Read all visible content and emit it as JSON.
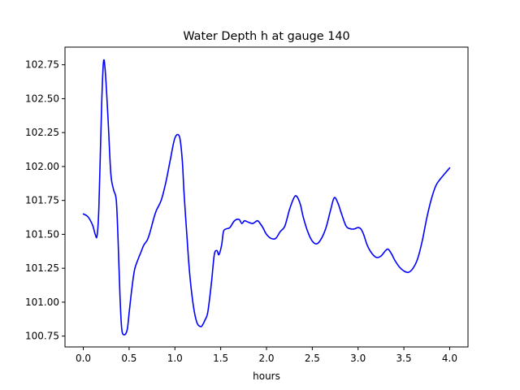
{
  "chart_data": {
    "type": "line",
    "title": "Water Depth h at gauge 140",
    "xlabel": "hours",
    "ylabel": "",
    "xlim": [
      -0.2,
      4.2
    ],
    "ylim": [
      100.67,
      102.88
    ],
    "x_ticks": [
      0.0,
      0.5,
      1.0,
      1.5,
      2.0,
      2.5,
      3.0,
      3.5,
      4.0
    ],
    "x_tick_labels": [
      "0.0",
      "0.5",
      "1.0",
      "1.5",
      "2.0",
      "2.5",
      "3.0",
      "3.5",
      "4.0"
    ],
    "y_ticks": [
      100.75,
      101.0,
      101.25,
      101.5,
      101.75,
      102.0,
      102.25,
      102.5,
      102.75
    ],
    "y_tick_labels": [
      "100.75",
      "101.00",
      "101.25",
      "101.50",
      "101.75",
      "102.00",
      "102.25",
      "102.50",
      "102.75"
    ],
    "grid": false,
    "legend": "none",
    "series": [
      {
        "color": "#0000ff",
        "x": [
          0.0,
          0.05,
          0.1,
          0.13,
          0.15,
          0.17,
          0.2,
          0.22,
          0.24,
          0.27,
          0.3,
          0.33,
          0.36,
          0.38,
          0.4,
          0.42,
          0.45,
          0.48,
          0.5,
          0.53,
          0.56,
          0.6,
          0.63,
          0.66,
          0.7,
          0.73,
          0.77,
          0.8,
          0.85,
          0.9,
          0.95,
          1.0,
          1.05,
          1.08,
          1.1,
          1.13,
          1.16,
          1.2,
          1.24,
          1.28,
          1.3,
          1.33,
          1.36,
          1.4,
          1.43,
          1.46,
          1.48,
          1.51,
          1.53,
          1.56,
          1.6,
          1.65,
          1.7,
          1.73,
          1.76,
          1.8,
          1.85,
          1.9,
          1.93,
          1.96,
          2.0,
          2.05,
          2.1,
          2.15,
          2.2,
          2.25,
          2.3,
          2.33,
          2.37,
          2.4,
          2.45,
          2.5,
          2.55,
          2.6,
          2.65,
          2.7,
          2.74,
          2.78,
          2.82,
          2.87,
          2.92,
          2.96,
          3.0,
          3.03,
          3.06,
          3.1,
          3.15,
          3.2,
          3.25,
          3.3,
          3.33,
          3.37,
          3.4,
          3.45,
          3.5,
          3.55,
          3.6,
          3.65,
          3.7,
          3.75,
          3.8,
          3.85,
          3.9,
          3.95,
          4.0
        ],
        "y": [
          101.65,
          101.63,
          101.57,
          101.5,
          101.49,
          101.7,
          102.45,
          102.77,
          102.7,
          102.35,
          101.95,
          101.83,
          101.75,
          101.45,
          101.05,
          100.8,
          100.76,
          100.8,
          100.92,
          101.1,
          101.24,
          101.32,
          101.37,
          101.42,
          101.46,
          101.52,
          101.62,
          101.68,
          101.75,
          101.88,
          102.05,
          102.21,
          102.22,
          102.05,
          101.8,
          101.5,
          101.22,
          100.98,
          100.85,
          100.82,
          100.83,
          100.87,
          100.93,
          101.15,
          101.35,
          101.38,
          101.35,
          101.42,
          101.52,
          101.54,
          101.55,
          101.6,
          101.61,
          101.58,
          101.6,
          101.59,
          101.58,
          101.6,
          101.58,
          101.55,
          101.5,
          101.47,
          101.47,
          101.52,
          101.56,
          101.68,
          101.77,
          101.78,
          101.72,
          101.63,
          101.52,
          101.45,
          101.43,
          101.47,
          101.55,
          101.68,
          101.77,
          101.73,
          101.65,
          101.56,
          101.54,
          101.54,
          101.55,
          101.54,
          101.5,
          101.42,
          101.36,
          101.33,
          101.34,
          101.38,
          101.39,
          101.35,
          101.31,
          101.26,
          101.23,
          101.22,
          101.25,
          101.32,
          101.45,
          101.62,
          101.76,
          101.86,
          101.91,
          101.95,
          101.99
        ]
      }
    ]
  }
}
